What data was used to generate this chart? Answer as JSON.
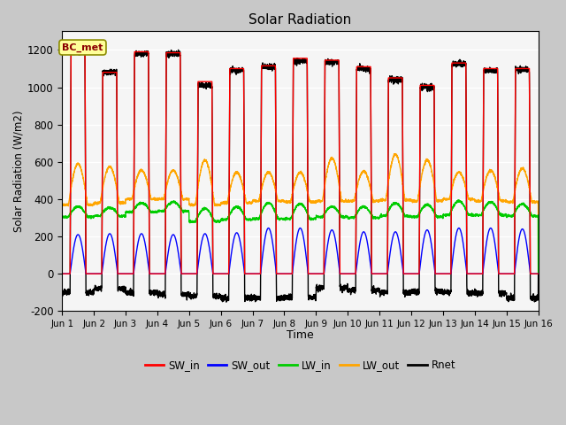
{
  "title": "Solar Radiation",
  "xlabel": "Time",
  "ylabel": "Solar Radiation (W/m2)",
  "ylim": [
    -200,
    1300
  ],
  "yticks": [
    -200,
    0,
    200,
    400,
    600,
    800,
    1000,
    1200
  ],
  "xlim": [
    0,
    15
  ],
  "xtick_labels": [
    "Jun 1",
    "Jun 2",
    "Jun 3",
    "Jun 4",
    "Jun 5",
    "Jun 6",
    "Jun 7",
    "Jun 8",
    "Jun 9",
    "Jun 10",
    "Jun 11",
    "Jun 12",
    "Jun 13",
    "Jun 14",
    "Jun 15",
    "Jun 16"
  ],
  "annotation_text": "BC_met",
  "colors": {
    "SW_in": "#FF0000",
    "SW_out": "#0000FF",
    "LW_in": "#00CC00",
    "LW_out": "#FFA500",
    "Rnet": "#000000"
  },
  "fig_bg": "#C8C8C8",
  "plot_bg": "#F5F5F5",
  "n_days": 15,
  "pts_per_day": 288,
  "SW_in_peaks": [
    1200,
    1080,
    1190,
    1185,
    1030,
    1100,
    1115,
    1155,
    1145,
    1110,
    1050,
    1010,
    1130,
    1100,
    1100
  ],
  "SW_out_peaks": [
    210,
    215,
    215,
    210,
    215,
    220,
    245,
    245,
    235,
    225,
    225,
    235,
    245,
    245,
    240
  ],
  "LW_in_base": [
    305,
    310,
    330,
    335,
    280,
    290,
    295,
    295,
    305,
    300,
    310,
    305,
    315,
    315,
    310
  ],
  "LW_in_peaks": [
    360,
    355,
    380,
    385,
    350,
    360,
    380,
    375,
    360,
    360,
    380,
    370,
    390,
    385,
    375
  ],
  "LW_out_base": [
    370,
    380,
    400,
    400,
    370,
    380,
    390,
    385,
    390,
    390,
    395,
    390,
    400,
    390,
    385
  ],
  "LW_out_peaks": [
    590,
    575,
    555,
    555,
    610,
    545,
    545,
    545,
    620,
    550,
    640,
    610,
    545,
    555,
    565
  ],
  "Rnet_night": [
    -100,
    -80,
    -100,
    -110,
    -120,
    -130,
    -130,
    -125,
    -75,
    -90,
    -100,
    -95,
    -100,
    -105,
    -130
  ],
  "Rnet_peaks": [
    1190,
    1080,
    1180,
    1180,
    1010,
    1090,
    1110,
    1140,
    1135,
    1100,
    1040,
    1000,
    1125,
    1090,
    1095
  ]
}
